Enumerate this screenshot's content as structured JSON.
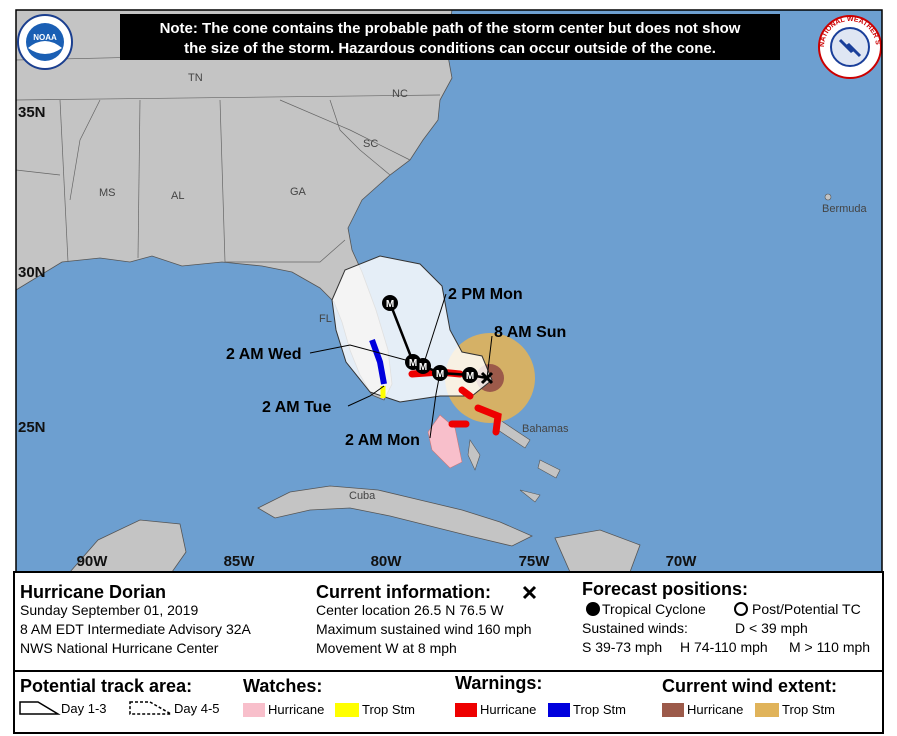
{
  "header": {
    "note": [
      "Note: The cone contains the probable path of the storm center but does not show",
      "the size of the storm. Hazardous conditions can occur outside of the cone."
    ]
  },
  "logos": {
    "noaa": "NOAA",
    "nws": "NATIONAL WEATHER SERVICE"
  },
  "map": {
    "latitude_labels": [
      "35N",
      "30N",
      "25N"
    ],
    "longitude_labels": [
      "90W",
      "85W",
      "80W",
      "75W",
      "70W"
    ],
    "place_labels": [
      "TN",
      "NC",
      "SC",
      "MS",
      "AL",
      "GA",
      "FL",
      "Bermuda",
      "Bahamas",
      "Cuba"
    ],
    "forecast_time_labels": [
      "2 PM Mon",
      "8 AM Sun",
      "2 AM Wed",
      "2 AM Tue",
      "2 AM Mon"
    ],
    "forecast_point_labels": [
      "M",
      "M",
      "M",
      "M",
      "M"
    ]
  },
  "info": {
    "storm": {
      "name": "Hurricane Dorian",
      "lines": [
        "Sunday September 01, 2019",
        "8 AM EDT Intermediate Advisory 32A",
        "NWS National Hurricane Center"
      ]
    },
    "current": {
      "title": "Current information:",
      "lines": [
        "Center location 26.5 N 76.5 W",
        "Maximum sustained wind 160 mph",
        "Movement W at 8 mph"
      ]
    },
    "forecast": {
      "title": "Forecast positions:",
      "tropical": "Tropical Cyclone",
      "post": "Post/Potential TC",
      "winds_title": "Sustained winds:",
      "d": "D < 39 mph",
      "s": "S 39-73 mph",
      "h": "H 74-110 mph",
      "m": "M > 110 mph"
    }
  },
  "legend": {
    "track": {
      "title": "Potential track area:",
      "day13": "Day 1-3",
      "day45": "Day 4-5"
    },
    "watches": {
      "title": "Watches:",
      "hurricane": "Hurricane",
      "trop": "Trop Stm"
    },
    "warnings": {
      "title": "Warnings:",
      "hurricane": "Hurricane",
      "trop": "Trop Stm"
    },
    "wind": {
      "title": "Current wind extent:",
      "hurricane": "Hurricane",
      "trop": "Trop Stm"
    }
  }
}
